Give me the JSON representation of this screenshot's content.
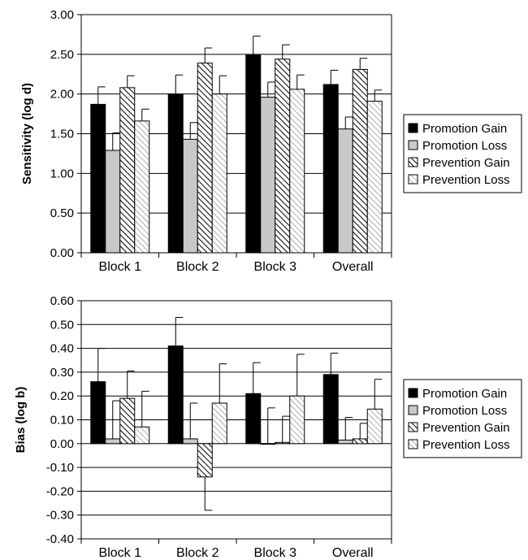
{
  "chart_data": [
    {
      "type": "bar",
      "title": "",
      "xlabel": "",
      "ylabel": "Sensitivity (log d)",
      "ylim": [
        0,
        3
      ],
      "yticks": [
        "0.00",
        "0.50",
        "1.00",
        "1.50",
        "2.00",
        "2.50",
        "3.00"
      ],
      "categories": [
        "Block 1",
        "Block 2",
        "Block 3",
        "Overall"
      ],
      "grid": true,
      "legend": "right",
      "series": [
        {
          "name": "Promotion Gain",
          "values": [
            1.87,
            2.0,
            2.49,
            2.12
          ],
          "errors": [
            0.22,
            0.24,
            0.24,
            0.18
          ]
        },
        {
          "name": "Promotion Loss",
          "values": [
            1.29,
            1.43,
            1.96,
            1.56
          ],
          "errors": [
            0.22,
            0.21,
            0.19,
            0.15
          ]
        },
        {
          "name": "Prevention Gain",
          "values": [
            2.08,
            2.39,
            2.44,
            2.31
          ],
          "errors": [
            0.15,
            0.19,
            0.18,
            0.14
          ]
        },
        {
          "name": "Prevention Loss",
          "values": [
            1.66,
            2.0,
            2.06,
            1.91
          ],
          "errors": [
            0.15,
            0.23,
            0.18,
            0.14
          ]
        }
      ]
    },
    {
      "type": "bar",
      "title": "",
      "xlabel": "",
      "ylabel": "Bias (log b)",
      "ylim": [
        -0.4,
        0.6
      ],
      "yticks": [
        "-0.40",
        "-0.30",
        "-0.20",
        "-0.10",
        "0.00",
        "0.10",
        "0.20",
        "0.30",
        "0.40",
        "0.50",
        "0.60"
      ],
      "categories": [
        "Block 1",
        "Block 2",
        "Block 3",
        "Overall"
      ],
      "grid": true,
      "legend": "right",
      "series": [
        {
          "name": "Promotion Gain",
          "values": [
            0.26,
            0.41,
            0.21,
            0.29
          ],
          "errors": [
            0.14,
            0.12,
            0.13,
            0.09
          ]
        },
        {
          "name": "Promotion Loss",
          "values": [
            0.02,
            0.02,
            0.0,
            0.015
          ],
          "errors": [
            0.16,
            0.15,
            0.15,
            0.095
          ]
        },
        {
          "name": "Prevention Gain",
          "values": [
            0.19,
            -0.14,
            0.005,
            0.02
          ],
          "errors": [
            0.115,
            0.14,
            0.11,
            0.065
          ]
        },
        {
          "name": "Prevention Loss",
          "values": [
            0.07,
            0.17,
            0.2,
            0.145
          ],
          "errors": [
            0.15,
            0.165,
            0.175,
            0.125
          ]
        }
      ]
    }
  ]
}
